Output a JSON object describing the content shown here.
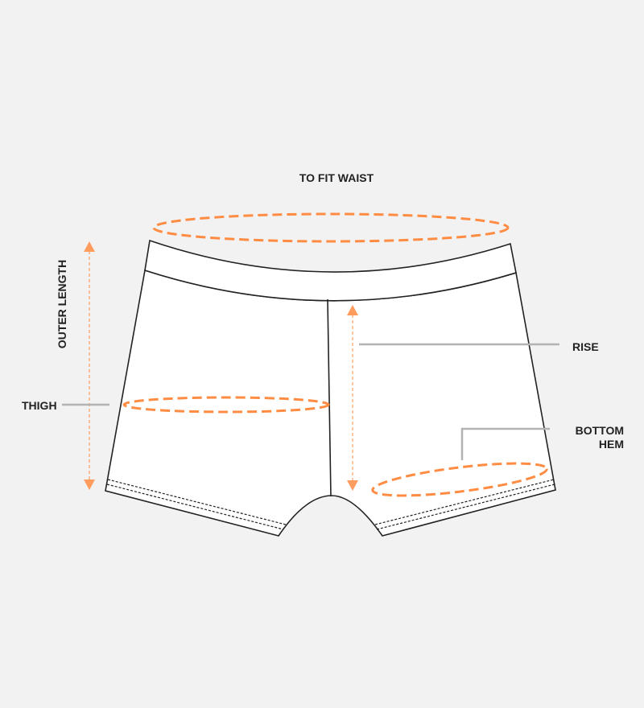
{
  "title": "TO FIT WAIST",
  "labels": {
    "outer_length": "OUTER LENGTH",
    "thigh": "THIGH",
    "rise": "RISE",
    "bottom_hem_line1": "BOTTOM",
    "bottom_hem_line2": "HEM"
  },
  "colors": {
    "background": "#f2f2f2",
    "accent": "#ff8c42",
    "outline": "#222222",
    "leader": "#b3b3b3"
  }
}
